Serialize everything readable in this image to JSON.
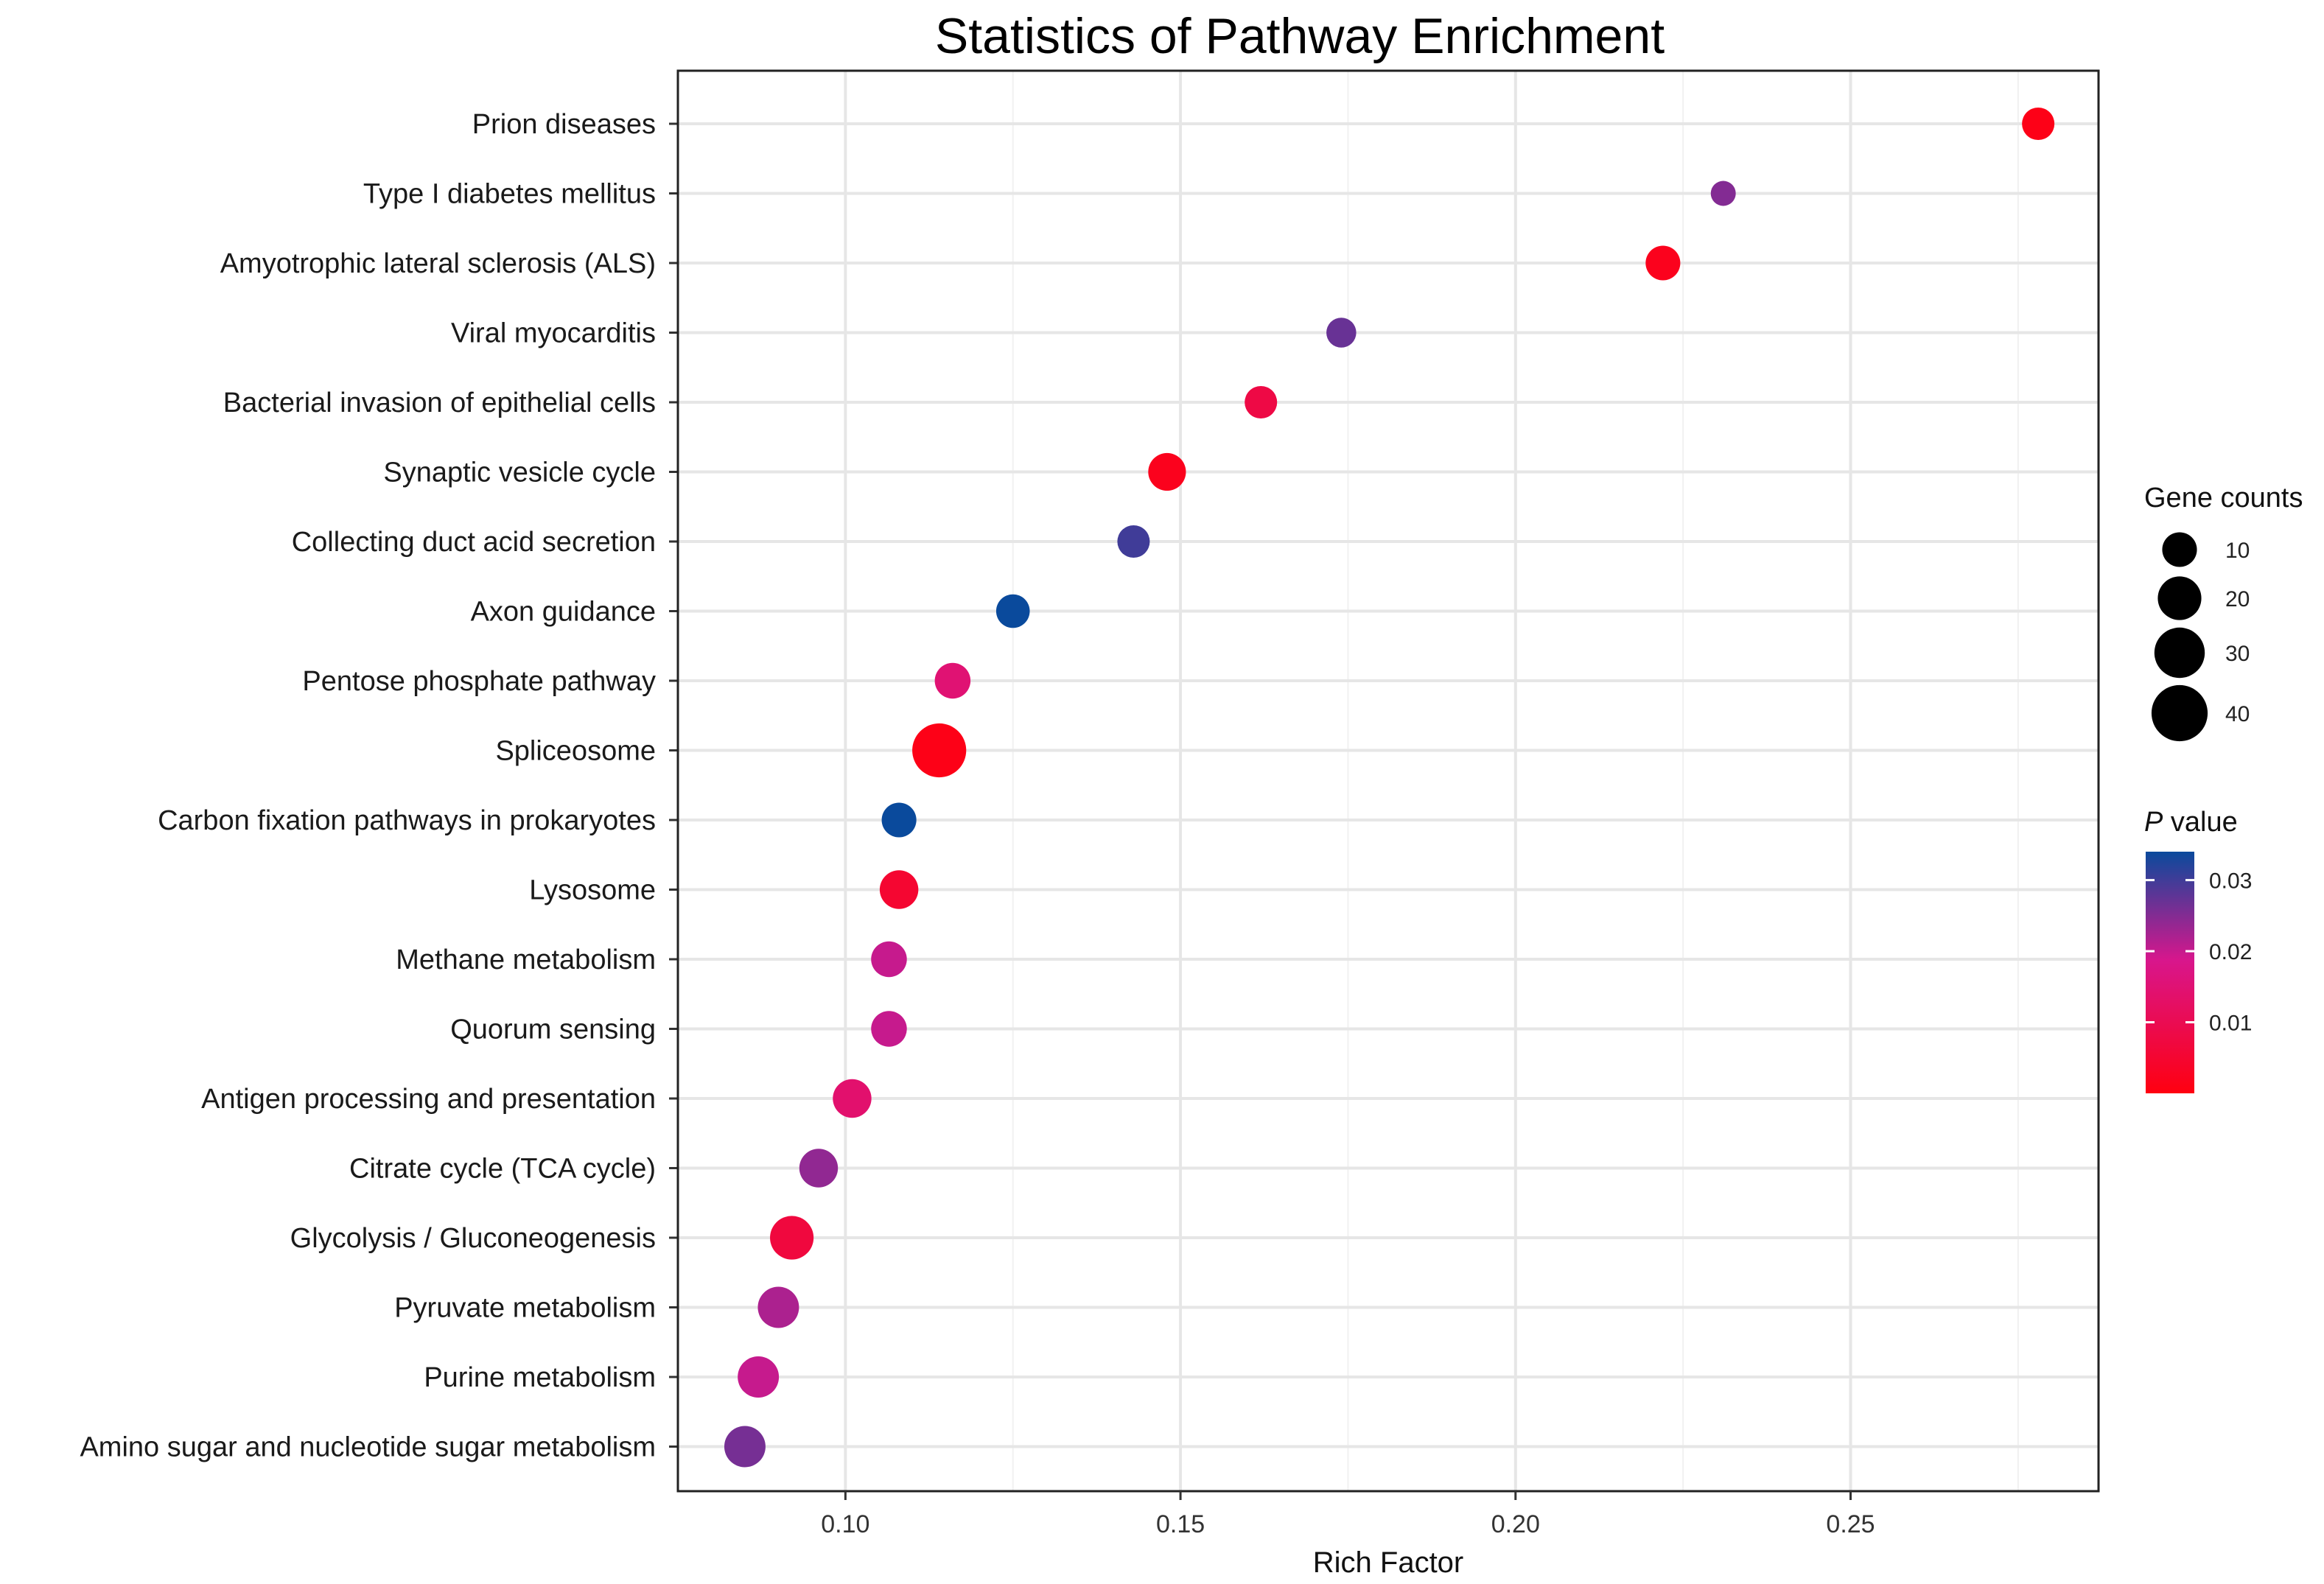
{
  "chart_data": {
    "type": "scatter",
    "title": "Statistics of Pathway Enrichment",
    "xlabel": "Rich Factor",
    "ylabel": "",
    "xlim": [
      0.075,
      0.287
    ],
    "xticks": [
      "0.10",
      "0.15",
      "0.20",
      "0.25"
    ],
    "xtick_values": [
      0.1,
      0.15,
      0.2,
      0.25
    ],
    "grid": true,
    "points": [
      {
        "pathway": "Prion diseases",
        "rich_factor": 0.278,
        "gene_count": 8,
        "p_value": 0.001
      },
      {
        "pathway": "Type I diabetes mellitus",
        "rich_factor": 0.231,
        "gene_count": 3,
        "p_value": 0.025
      },
      {
        "pathway": "Amyotrophic lateral sclerosis (ALS)",
        "rich_factor": 0.222,
        "gene_count": 10,
        "p_value": 0.002
      },
      {
        "pathway": "Viral myocarditis",
        "rich_factor": 0.174,
        "gene_count": 6,
        "p_value": 0.027
      },
      {
        "pathway": "Bacterial invasion of epithelial cells",
        "rich_factor": 0.162,
        "gene_count": 8,
        "p_value": 0.008
      },
      {
        "pathway": "Synaptic vesicle cycle",
        "rich_factor": 0.148,
        "gene_count": 13,
        "p_value": 0.002
      },
      {
        "pathway": "Collecting duct acid secretion",
        "rich_factor": 0.143,
        "gene_count": 8,
        "p_value": 0.03
      },
      {
        "pathway": "Axon guidance",
        "rich_factor": 0.125,
        "gene_count": 9,
        "p_value": 0.034
      },
      {
        "pathway": "Pentose phosphate pathway",
        "rich_factor": 0.116,
        "gene_count": 11,
        "p_value": 0.015
      },
      {
        "pathway": "Spliceosome",
        "rich_factor": 0.114,
        "gene_count": 36,
        "p_value": 0.001
      },
      {
        "pathway": "Carbon fixation pathways in prokaryotes",
        "rich_factor": 0.108,
        "gene_count": 10,
        "p_value": 0.034
      },
      {
        "pathway": "Lysosome",
        "rich_factor": 0.108,
        "gene_count": 14,
        "p_value": 0.005
      },
      {
        "pathway": "Methane metabolism",
        "rich_factor": 0.1065,
        "gene_count": 11,
        "p_value": 0.02
      },
      {
        "pathway": "Quorum sensing",
        "rich_factor": 0.1065,
        "gene_count": 11,
        "p_value": 0.02
      },
      {
        "pathway": "Antigen processing and presentation",
        "rich_factor": 0.101,
        "gene_count": 14,
        "p_value": 0.014
      },
      {
        "pathway": "Citrate cycle (TCA cycle)",
        "rich_factor": 0.096,
        "gene_count": 14,
        "p_value": 0.024
      },
      {
        "pathway": "Glycolysis / Gluconeogenesis",
        "rich_factor": 0.092,
        "gene_count": 20,
        "p_value": 0.007
      },
      {
        "pathway": "Pyruvate metabolism",
        "rich_factor": 0.09,
        "gene_count": 17,
        "p_value": 0.022
      },
      {
        "pathway": "Purine metabolism",
        "rich_factor": 0.087,
        "gene_count": 17,
        "p_value": 0.02
      },
      {
        "pathway": "Amino sugar and nucleotide sugar metabolism",
        "rich_factor": 0.085,
        "gene_count": 17,
        "p_value": 0.026
      }
    ],
    "size_legend": {
      "title": "Gene counts",
      "values": [
        10,
        20,
        30,
        40
      ],
      "labels": [
        "10",
        "20",
        "30",
        "40"
      ]
    },
    "color_legend": {
      "title_italic": "P",
      "title_rest": " value",
      "range": [
        0.0,
        0.034
      ],
      "ticks": [
        0.01,
        0.02,
        0.03
      ],
      "labels": [
        "0.01",
        "0.02",
        "0.03"
      ],
      "colors": {
        "low": "#ff0010",
        "mid": "#d8168c",
        "high": "#0a4a9c"
      }
    }
  }
}
